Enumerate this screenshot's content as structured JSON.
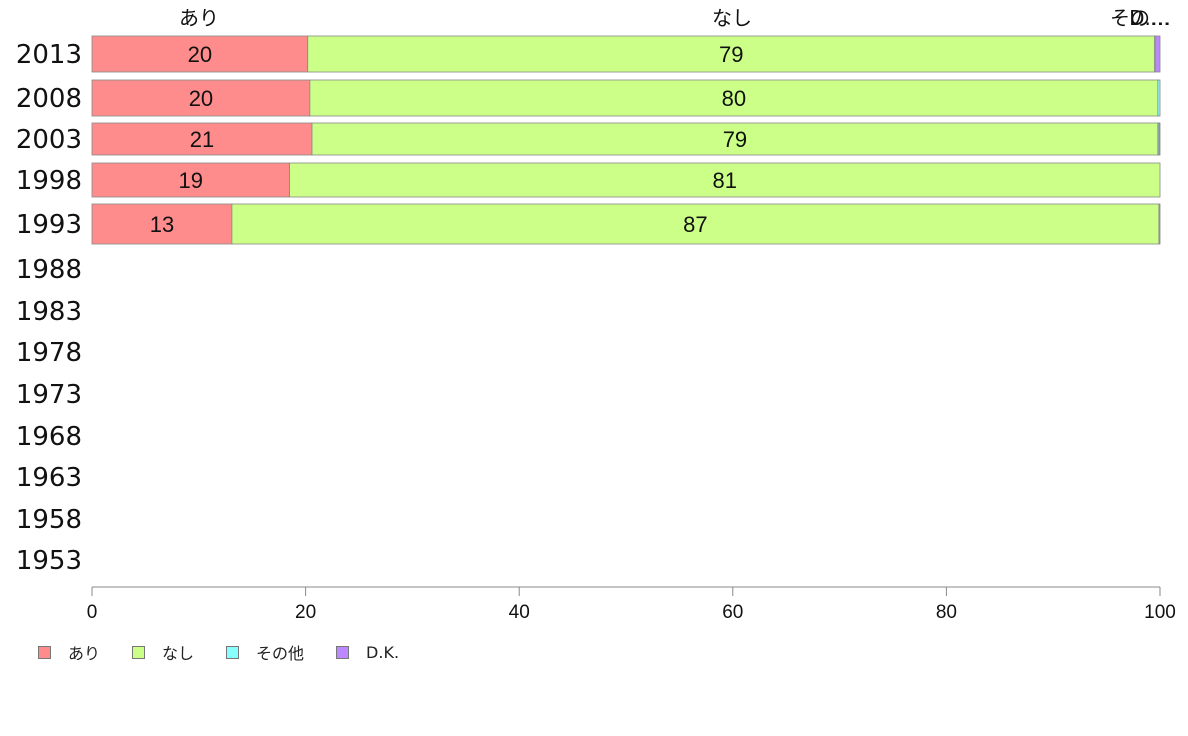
{
  "chart_data": {
    "type": "bar",
    "orientation": "horizontal",
    "stacked": true,
    "categories": [
      "2013",
      "2008",
      "2003",
      "1998",
      "1993",
      "1988",
      "1983",
      "1978",
      "1973",
      "1968",
      "1963",
      "1958",
      "1953"
    ],
    "series": [
      {
        "name": "あり",
        "color": "#ff8c8c",
        "values": [
          20.2,
          20.4,
          20.6,
          18.5,
          13.1,
          null,
          null,
          null,
          null,
          null,
          null,
          null,
          null
        ]
      },
      {
        "name": "なし",
        "color": "#ccff88",
        "values": [
          79.3,
          79.4,
          79.2,
          81.5,
          86.8,
          null,
          null,
          null,
          null,
          null,
          null,
          null,
          null
        ]
      },
      {
        "name": "その他",
        "color": "#88ffff",
        "values": [
          0.1,
          0.2,
          0.1,
          0.0,
          0.0,
          null,
          null,
          null,
          null,
          null,
          null,
          null,
          null
        ]
      },
      {
        "name": "D.K.",
        "color": "#bb88ff",
        "values": [
          0.4,
          0.0,
          0.1,
          0.0,
          0.1,
          null,
          null,
          null,
          null,
          null,
          null,
          null,
          null
        ]
      }
    ],
    "data_labels": [
      [
        "20",
        "79",
        "",
        ""
      ],
      [
        "20",
        "80",
        "",
        ""
      ],
      [
        "21",
        "79",
        "",
        ""
      ],
      [
        "19",
        "81",
        "",
        ""
      ],
      [
        "13",
        "87",
        "",
        ""
      ]
    ],
    "top_labels": [
      "あり",
      "なし",
      "その…",
      "D.…"
    ],
    "x_ticks": [
      "0",
      "20",
      "40",
      "60",
      "80",
      "100"
    ],
    "xlim": [
      0,
      100
    ],
    "grid": false,
    "legend_position": "bottom-left"
  }
}
